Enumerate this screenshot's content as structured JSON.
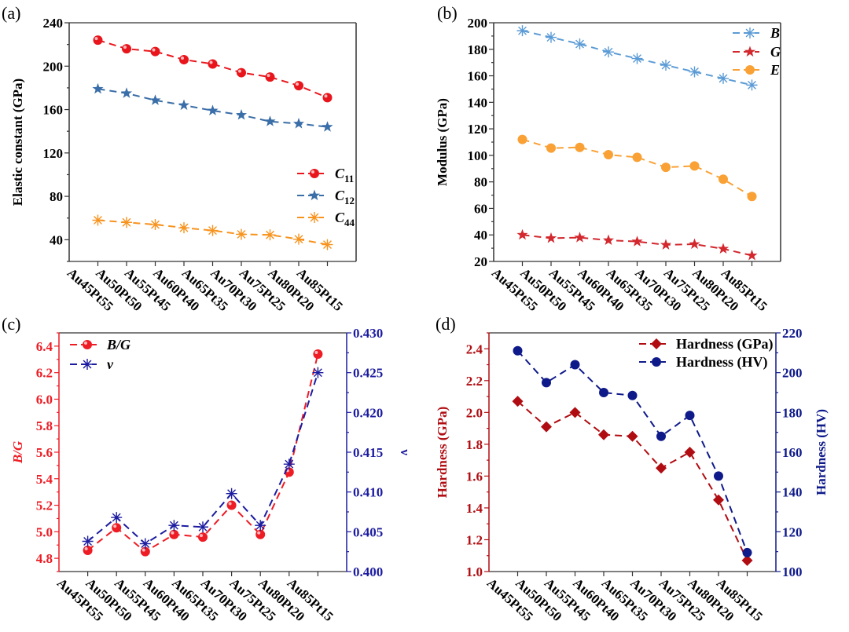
{
  "chart_data": [
    {
      "panel_label": "(a)",
      "type": "line",
      "categories": [
        "Au45Pt55",
        "Au50Pt50",
        "Au55Pt45",
        "Au60Pt40",
        "Au65Pt35",
        "Au70Pt30",
        "Au75Pt25",
        "Au80Pt20",
        "Au85Pt15"
      ],
      "ylabel": "Elastic constant (GPa)",
      "ylim": [
        20,
        240
      ],
      "yticks": [
        40,
        80,
        120,
        160,
        200,
        240
      ],
      "legend_position": "center-right",
      "series": [
        {
          "name": "C11",
          "marker": "sphere",
          "color": "#e8161c",
          "values": [
            224,
            216,
            213.5,
            206,
            202,
            194,
            190,
            182,
            171
          ]
        },
        {
          "name": "C12",
          "marker": "star",
          "color": "#3a6ea8",
          "values": [
            179,
            175,
            168.5,
            164,
            159,
            155,
            149,
            147,
            144
          ]
        },
        {
          "name": "C44",
          "marker": "asterisk",
          "color": "#f7931e",
          "values": [
            58,
            56,
            54,
            51,
            48.5,
            45,
            44.5,
            40.5,
            35.5
          ]
        }
      ]
    },
    {
      "panel_label": "(b)",
      "type": "line",
      "categories": [
        "Au45Pt55",
        "Au50Pt50",
        "Au55Pt45",
        "Au60Pt40",
        "Au65Pt35",
        "Au70Pt30",
        "Au75Pt25",
        "Au80Pt20",
        "Au85Pt15"
      ],
      "ylabel": "Modulus (GPa)",
      "ylim": [
        20,
        200
      ],
      "yticks": [
        20,
        40,
        60,
        80,
        100,
        120,
        140,
        160,
        180,
        200
      ],
      "legend_position": "top-right",
      "series": [
        {
          "name": "B",
          "marker": "asterisk",
          "color": "#5b9bd5",
          "values": [
            194,
            189,
            184,
            178,
            173,
            168,
            163,
            158,
            153
          ]
        },
        {
          "name": "G",
          "marker": "star",
          "color": "#d2282e",
          "values": [
            40,
            37.5,
            38,
            36,
            35,
            32.5,
            33,
            29.5,
            24.5
          ]
        },
        {
          "name": "E",
          "marker": "dot",
          "color": "#f9a135",
          "values": [
            112,
            105.5,
            106,
            100.5,
            98.5,
            91,
            92,
            82,
            69
          ]
        }
      ]
    },
    {
      "panel_label": "(c)",
      "type": "line",
      "categories": [
        "Au45Pt55",
        "Au50Pt50",
        "Au55Pt45",
        "Au60Pt40",
        "Au65Pt35",
        "Au70Pt30",
        "Au75Pt25",
        "Au80Pt20",
        "Au85Pt15"
      ],
      "ylabel": "B/G",
      "ylabel_color": "#ee1c24",
      "ylim": [
        4.7,
        6.5
      ],
      "yticks": [
        4.8,
        5.0,
        5.2,
        5.4,
        5.6,
        5.8,
        6.0,
        6.2,
        6.4
      ],
      "y2label": "ν",
      "y2label_color": "#1c1ca0",
      "y2lim": [
        0.4,
        0.43
      ],
      "y2ticks": [
        0.4,
        0.405,
        0.41,
        0.415,
        0.42,
        0.425,
        0.43
      ],
      "legend_position": "top-left",
      "series": [
        {
          "name": "B/G",
          "axis": "left",
          "marker": "sphere",
          "color": "#ee1c24",
          "values": [
            4.86,
            5.03,
            4.85,
            4.98,
            4.96,
            5.2,
            4.98,
            5.45,
            6.34
          ]
        },
        {
          "name": "ν",
          "axis": "right",
          "marker": "asterisk",
          "color": "#1c1ca0",
          "values": [
            0.4038,
            0.4068,
            0.4035,
            0.4058,
            0.4056,
            0.4098,
            0.4058,
            0.4135,
            0.425
          ]
        }
      ]
    },
    {
      "panel_label": "(d)",
      "type": "line",
      "categories": [
        "Au45Pt55",
        "Au50Pt50",
        "Au55Pt45",
        "Au60Pt40",
        "Au65Pt35",
        "Au70Pt30",
        "Au75Pt25",
        "Au80Pt20",
        "Au85Pt15"
      ],
      "ylabel": "Hardness (GPa)",
      "ylabel_color": "#b00d12",
      "ylim": [
        1.0,
        2.5
      ],
      "yticks": [
        1.0,
        1.2,
        1.4,
        1.6,
        1.8,
        2.0,
        2.2,
        2.4
      ],
      "y2label": "Hardness (HV)",
      "y2label_color": "#0f1a8a",
      "y2lim": [
        100,
        220
      ],
      "y2ticks": [
        100,
        120,
        140,
        160,
        180,
        200,
        220
      ],
      "legend_position": "top-right",
      "series": [
        {
          "name": "Hardness (GPa)",
          "axis": "left",
          "marker": "diamond",
          "color": "#b00d12",
          "values": [
            2.07,
            1.91,
            2.0,
            1.86,
            1.85,
            1.65,
            1.75,
            1.45,
            1.07
          ]
        },
        {
          "name": "Hardness (HV)",
          "axis": "right",
          "marker": "dot",
          "color": "#0f1a8a",
          "values": [
            211,
            195,
            204,
            190,
            188.5,
            168,
            178.5,
            148,
            109.5
          ]
        }
      ]
    }
  ]
}
